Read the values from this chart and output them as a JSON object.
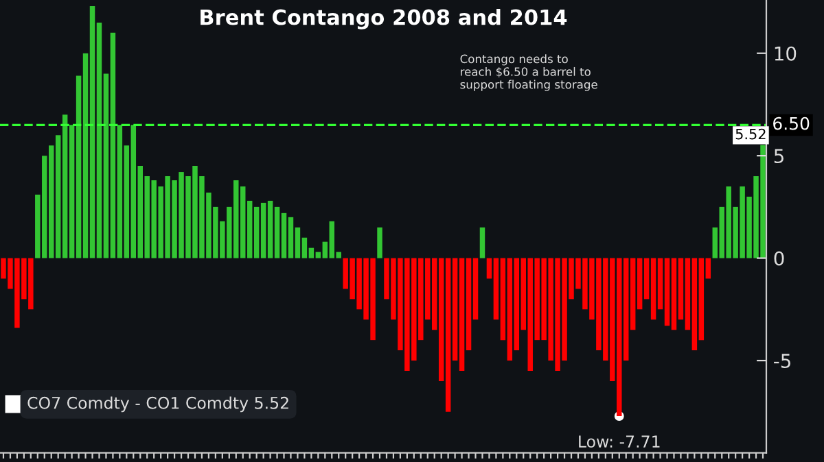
{
  "chart_data": {
    "type": "bar",
    "title": "Brent Contango 2008 and 2014",
    "categories": [
      null,
      null,
      null,
      null,
      null,
      null,
      null,
      null,
      null,
      null,
      null,
      null,
      null,
      null,
      null,
      null,
      null,
      null,
      null,
      null,
      null,
      null,
      null,
      null,
      null,
      null,
      null,
      null,
      null,
      null,
      null,
      null,
      null,
      null,
      null,
      null,
      null,
      null,
      null,
      null,
      null,
      null,
      null,
      null,
      null,
      null,
      null,
      null,
      null,
      null,
      null,
      null,
      null,
      null,
      null,
      null,
      null,
      null,
      null,
      null,
      null,
      null,
      null,
      null,
      null,
      null,
      null,
      null,
      null,
      null,
      null,
      null,
      null,
      null,
      null,
      null,
      null,
      null,
      null,
      null,
      null,
      null,
      null,
      null,
      null,
      null,
      null,
      null,
      null,
      null,
      null,
      null,
      null,
      null,
      null,
      null,
      null,
      null,
      null,
      null,
      null,
      null,
      null,
      null,
      null,
      null,
      null,
      null,
      null,
      null,
      null,
      null
    ],
    "values": [
      -1.0,
      -1.5,
      -3.4,
      -2.0,
      -2.5,
      3.1,
      5,
      5.5,
      6,
      7,
      6.5,
      8.9,
      10,
      12.3,
      11.5,
      9,
      11,
      6.5,
      5.5,
      6.5,
      4.5,
      4.0,
      3.8,
      3.5,
      4.0,
      3.8,
      4.2,
      4.0,
      4.5,
      4.0,
      3.2,
      2.5,
      1.8,
      2.5,
      3.8,
      3.5,
      2.8,
      2.5,
      2.7,
      2.8,
      2.5,
      2.2,
      2.0,
      1.5,
      1.0,
      0.5,
      0.3,
      0.8,
      1.8,
      0.3,
      -1.5,
      -2.0,
      -2.5,
      -3.0,
      -4,
      1.5,
      -2,
      -3,
      -4.5,
      -5.5,
      -5,
      -4,
      -3,
      -3.5,
      -6,
      -7.5,
      -5,
      -5.5,
      -4.5,
      -3,
      1.5,
      -1,
      -3,
      -4,
      -5,
      -4.5,
      -3.5,
      -5.5,
      -4,
      -4,
      -5,
      -5.5,
      -5,
      -2,
      -1.5,
      -2.5,
      -3,
      -4.5,
      -5,
      -6,
      -7.71,
      -5,
      -3.5,
      -2.5,
      -2.0,
      -3,
      -2.5,
      -3.3,
      -3.5,
      -3.0,
      -3.5,
      -4.5,
      -4.0,
      -1,
      1.5,
      2.5,
      3.5,
      2.5,
      3.5,
      3.0,
      4.0,
      5.52
    ],
    "colors": [
      "#ff0000",
      "#ff0000",
      "#ff0000",
      "#ff0000",
      "#ff0000",
      "#33c633",
      "#33c633",
      "#33c633",
      "#33c633",
      "#33c633",
      "#33c633",
      "#33c633",
      "#33c633",
      "#33c633",
      "#33c633",
      "#33c633",
      "#33c633",
      "#33c633",
      "#33c633",
      "#33c633",
      "#33c633",
      "#33c633",
      "#33c633",
      "#33c633",
      "#33c633",
      "#33c633",
      "#33c633",
      "#33c633",
      "#33c633",
      "#33c633",
      "#33c633",
      "#33c633",
      "#33c633",
      "#33c633",
      "#33c633",
      "#33c633",
      "#33c633",
      "#33c633",
      "#33c633",
      "#33c633",
      "#33c633",
      "#33c633",
      "#33c633",
      "#33c633",
      "#33c633",
      "#33c633",
      "#33c633",
      "#33c633",
      "#33c633",
      "#33c633",
      "#ff0000",
      "#ff0000",
      "#ff0000",
      "#ff0000",
      "#ff0000",
      "#33c633",
      "#ff0000",
      "#ff0000",
      "#ff0000",
      "#ff0000",
      "#ff0000",
      "#ff0000",
      "#ff0000",
      "#ff0000",
      "#ff0000",
      "#ff0000",
      "#ff0000",
      "#ff0000",
      "#ff0000",
      "#ff0000",
      "#33c633",
      "#ff0000",
      "#ff0000",
      "#ff0000",
      "#ff0000",
      "#ff0000",
      "#ff0000",
      "#ff0000",
      "#ff0000",
      "#ff0000",
      "#ff0000",
      "#ff0000",
      "#ff0000",
      "#ff0000",
      "#ff0000",
      "#ff0000",
      "#ff0000",
      "#ff0000",
      "#ff0000",
      "#ff0000",
      "#ff0000",
      "#ff0000",
      "#ff0000",
      "#ff0000",
      "#ff0000",
      "#ff0000",
      "#ff0000",
      "#ff0000",
      "#ff0000",
      "#ff0000",
      "#ff0000",
      "#ff0000",
      "#ff0000",
      "#ff0000",
      "#33c633",
      "#33c633",
      "#33c633",
      "#33c633",
      "#33c633",
      "#33c633",
      "#33c633",
      "#33c633"
    ],
    "value_labels": [
      null,
      null,
      null,
      null,
      null,
      null,
      null,
      null,
      null,
      null,
      null,
      null,
      null,
      null,
      null,
      null,
      null,
      null,
      null,
      null,
      null,
      null,
      null,
      null,
      null,
      null,
      null,
      null,
      null,
      null,
      null,
      null,
      null,
      null,
      null,
      null,
      null,
      null,
      null,
      null,
      null,
      null,
      null,
      null,
      null,
      null,
      null,
      null,
      null,
      null,
      null,
      null,
      null,
      null,
      null,
      null,
      null,
      null,
      null,
      null,
      null,
      null,
      null,
      null,
      null,
      null,
      null,
      null,
      null,
      null,
      null,
      null,
      null,
      null,
      null,
      null,
      null,
      null,
      null,
      null,
      null,
      null,
      null,
      null,
      null,
      null,
      null,
      null,
      null,
      null,
      null,
      null,
      null,
      null,
      null,
      null,
      null,
      null,
      null,
      null,
      null,
      null,
      null,
      null,
      null,
      null,
      null,
      null,
      null,
      null,
      null,
      "5.52"
    ],
    "ylim": [
      -9.5,
      12.6
    ],
    "yticks": [
      -5,
      0,
      5,
      10
    ],
    "grid": false,
    "tick_labels": "y",
    "ref_lines": [
      {
        "axis": "y",
        "value": 6.5,
        "label": "6.50",
        "color": "#33ff33",
        "line_style": "dashed"
      }
    ],
    "annotations": [
      "Contango needs to\nreach $6.50 a barrel to\nsupport floating storage",
      "CO7 Comdty - CO1 Comdty 5.52",
      {
        "text": "Low: -7.71",
        "y": -7.71
      }
    ]
  }
}
